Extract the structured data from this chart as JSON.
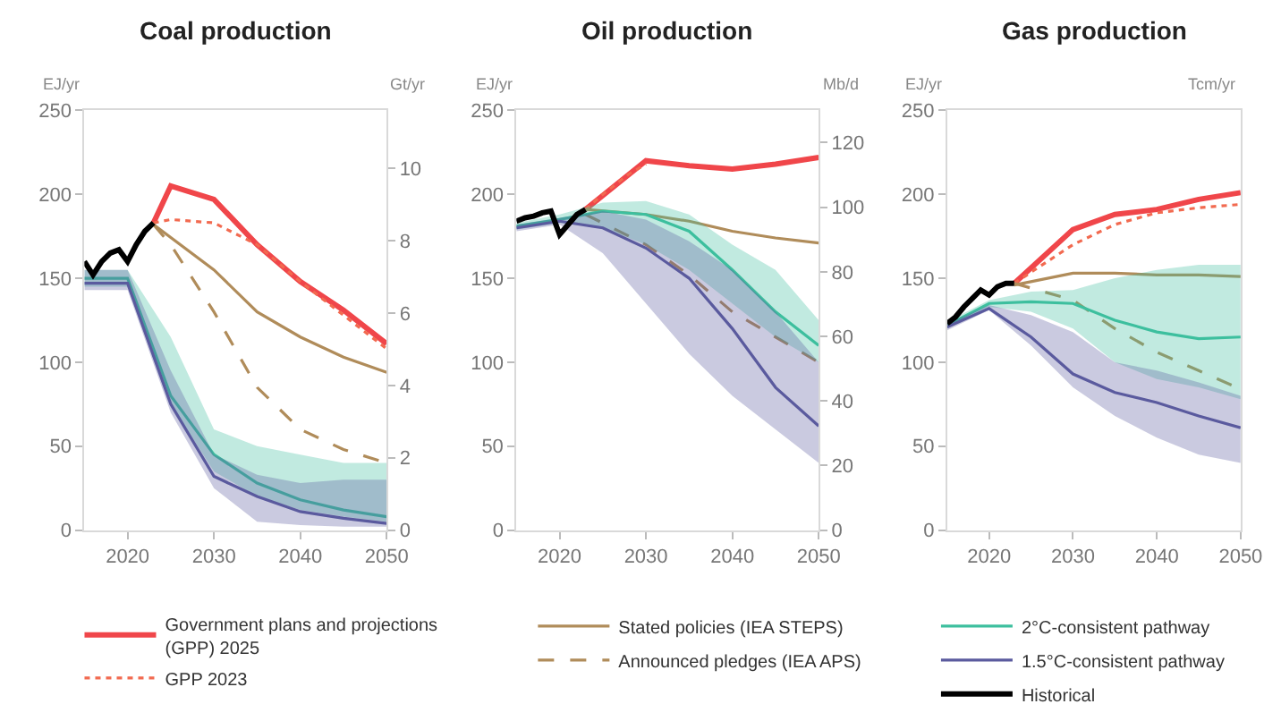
{
  "chart_data": [
    {
      "type": "line",
      "title": "Coal production",
      "ylabel": "EJ/yr",
      "y2label": "Gt/yr",
      "xlim": [
        2015,
        2050
      ],
      "xticks": [
        2020,
        2030,
        2040,
        2050
      ],
      "ylim": [
        0,
        250
      ],
      "yticks": [
        0,
        50,
        100,
        150,
        200,
        250
      ],
      "y2lim": [
        0,
        11.6
      ],
      "y2ticks": [
        0,
        2,
        4,
        6,
        8,
        10
      ],
      "legend": "bottom",
      "marker": "none",
      "series": [
        {
          "name": "Government plans and projections (GPP) 2025",
          "color": "#f0464a",
          "x": [
            2023,
            2025,
            2030,
            2035,
            2040,
            2045,
            2050
          ],
          "values": [
            183,
            205,
            197,
            170,
            148,
            131,
            111
          ]
        },
        {
          "name": "GPP 2023",
          "color": "#f26a50",
          "line_style": "dotted",
          "x": [
            2023,
            2025,
            2030,
            2035,
            2040,
            2045,
            2050
          ],
          "values": [
            183,
            185,
            183,
            170,
            148,
            128,
            108
          ]
        },
        {
          "name": "Stated policies (IEA STEPS)",
          "color": "#b08c5a",
          "x": [
            2023,
            2030,
            2035,
            2040,
            2045,
            2050
          ],
          "values": [
            182,
            155,
            130,
            115,
            103,
            94
          ]
        },
        {
          "name": "Announced pledges (IEA APS)",
          "color": "#b08c5a",
          "line_style": "dashed",
          "x": [
            2023,
            2025,
            2030,
            2035,
            2040,
            2045,
            2050
          ],
          "values": [
            182,
            170,
            130,
            85,
            60,
            48,
            40
          ]
        },
        {
          "name": "2°C-consistent pathway",
          "color": "#3dbf9e",
          "x": [
            2015,
            2020,
            2025,
            2030,
            2035,
            2040,
            2045,
            2050
          ],
          "values": [
            150,
            150,
            80,
            45,
            28,
            18,
            12,
            8
          ],
          "lower": [
            145,
            145,
            75,
            35,
            20,
            12,
            8,
            5
          ],
          "upper": [
            155,
            155,
            115,
            60,
            50,
            45,
            40,
            40
          ]
        },
        {
          "name": "1.5°C-consistent pathway",
          "color": "#5a5a9e",
          "x": [
            2015,
            2020,
            2025,
            2030,
            2035,
            2040,
            2045,
            2050
          ],
          "values": [
            147,
            147,
            75,
            32,
            20,
            11,
            7,
            4
          ],
          "lower": [
            143,
            143,
            70,
            25,
            5,
            3,
            2,
            2
          ],
          "upper": [
            155,
            155,
            95,
            45,
            33,
            28,
            30,
            30
          ]
        },
        {
          "name": "Historical",
          "color": "#000000",
          "x": [
            2015,
            2016,
            2017,
            2018,
            2019,
            2020,
            2021,
            2022,
            2023
          ],
          "values": [
            160,
            152,
            160,
            165,
            167,
            160,
            170,
            178,
            183
          ]
        }
      ]
    },
    {
      "type": "line",
      "title": "Oil production",
      "ylabel": "EJ/yr",
      "y2label": "Mb/d",
      "xlim": [
        2015,
        2050
      ],
      "xticks": [
        2020,
        2030,
        2040,
        2050
      ],
      "ylim": [
        0,
        250
      ],
      "yticks": [
        0,
        50,
        100,
        150,
        200,
        250
      ],
      "y2lim": [
        0,
        130
      ],
      "y2ticks": [
        0,
        20,
        40,
        60,
        80,
        100,
        120
      ],
      "marker": "none",
      "series": [
        {
          "color": "#f0464a",
          "x": [
            2023,
            2030,
            2035,
            2040,
            2045,
            2050
          ],
          "values": [
            191,
            220,
            217,
            215,
            218,
            222
          ]
        },
        {
          "color": "#f26a50",
          "line_style": "dotted",
          "x": [
            2023,
            2025,
            2028,
            2030
          ],
          "values": [
            191,
            200,
            212,
            218
          ]
        },
        {
          "color": "#b08c5a",
          "x": [
            2023,
            2030,
            2035,
            2040,
            2045,
            2050
          ],
          "values": [
            191,
            188,
            184,
            178,
            174,
            171
          ]
        },
        {
          "color": "#b08c5a",
          "line_style": "dashed",
          "x": [
            2023,
            2030,
            2035,
            2040,
            2045,
            2050
          ],
          "values": [
            188,
            170,
            152,
            130,
            115,
            100
          ]
        },
        {
          "color": "#3dbf9e",
          "x": [
            2015,
            2020,
            2025,
            2030,
            2035,
            2040,
            2045,
            2050
          ],
          "values": [
            181,
            185,
            190,
            188,
            178,
            155,
            130,
            110
          ],
          "lower": [
            179,
            183,
            180,
            170,
            155,
            135,
            115,
            100
          ],
          "upper": [
            183,
            188,
            195,
            196,
            188,
            170,
            155,
            125
          ]
        },
        {
          "color": "#5a5a9e",
          "x": [
            2015,
            2020,
            2025,
            2030,
            2035,
            2040,
            2045,
            2050
          ],
          "values": [
            180,
            184,
            180,
            168,
            150,
            120,
            85,
            62
          ],
          "lower": [
            178,
            182,
            165,
            135,
            105,
            80,
            60,
            40
          ],
          "upper": [
            182,
            186,
            190,
            185,
            172,
            155,
            130,
            100
          ]
        },
        {
          "color": "#000000",
          "x": [
            2015,
            2016,
            2017,
            2018,
            2019,
            2020,
            2021,
            2022,
            2023
          ],
          "values": [
            184,
            186,
            187,
            189,
            190,
            176,
            182,
            188,
            191
          ]
        }
      ]
    },
    {
      "type": "line",
      "title": "Gas production",
      "ylabel": "EJ/yr",
      "y2label": "Tcm/yr",
      "xlim": [
        2015,
        2050
      ],
      "xticks": [
        2020,
        2030,
        2040,
        2050
      ],
      "ylim": [
        0,
        250
      ],
      "yticks": [
        0,
        50,
        100,
        150,
        200,
        250
      ],
      "marker": "none",
      "series": [
        {
          "color": "#f0464a",
          "x": [
            2023,
            2030,
            2035,
            2040,
            2045,
            2050
          ],
          "values": [
            147,
            179,
            188,
            191,
            197,
            201
          ]
        },
        {
          "color": "#f26a50",
          "line_style": "dotted",
          "x": [
            2023,
            2030,
            2035,
            2040,
            2045,
            2050
          ],
          "values": [
            147,
            170,
            182,
            189,
            192,
            194
          ]
        },
        {
          "color": "#b08c5a",
          "x": [
            2023,
            2030,
            2035,
            2040,
            2045,
            2050
          ],
          "values": [
            146,
            153,
            153,
            152,
            152,
            151
          ]
        },
        {
          "color": "#b08c5a",
          "line_style": "dashed",
          "x": [
            2023,
            2030,
            2035,
            2040,
            2045,
            2050
          ],
          "values": [
            147,
            137,
            120,
            106,
            95,
            84
          ]
        },
        {
          "color": "#3dbf9e",
          "x": [
            2015,
            2020,
            2025,
            2030,
            2035,
            2040,
            2045,
            2050
          ],
          "values": [
            122,
            135,
            136,
            135,
            125,
            118,
            114,
            115
          ],
          "lower": [
            120,
            133,
            130,
            120,
            100,
            90,
            85,
            78
          ],
          "upper": [
            124,
            137,
            142,
            143,
            150,
            155,
            158,
            158
          ]
        },
        {
          "color": "#5a5a9e",
          "x": [
            2015,
            2020,
            2025,
            2030,
            2035,
            2040,
            2045,
            2050
          ],
          "values": [
            121,
            132,
            115,
            93,
            82,
            76,
            68,
            61
          ],
          "lower": [
            119,
            131,
            110,
            85,
            68,
            55,
            45,
            40
          ],
          "upper": [
            123,
            134,
            128,
            118,
            100,
            95,
            88,
            80
          ]
        },
        {
          "color": "#000000",
          "x": [
            2015,
            2016,
            2017,
            2018,
            2019,
            2020,
            2021,
            2022,
            2023
          ],
          "values": [
            123,
            127,
            133,
            138,
            143,
            140,
            145,
            147,
            147
          ]
        }
      ]
    }
  ]
}
